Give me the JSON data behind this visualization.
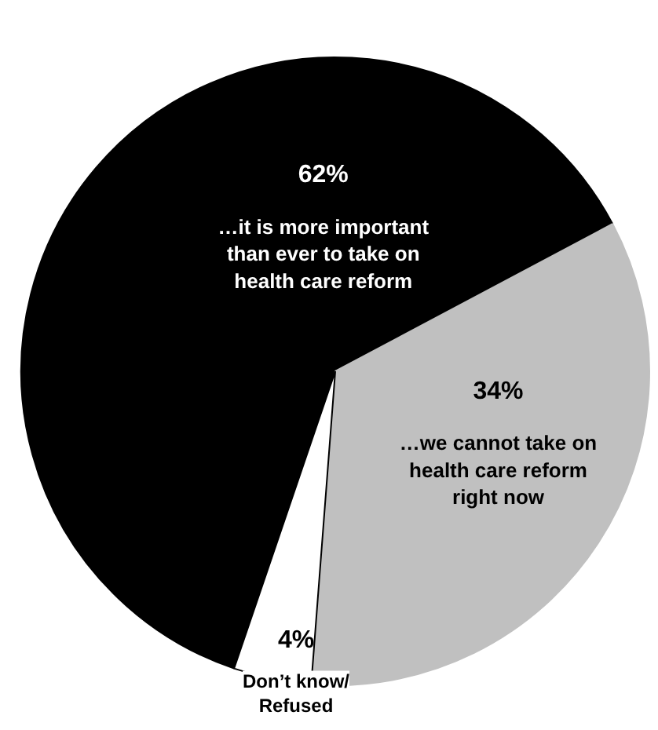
{
  "chart_data": {
    "type": "pie",
    "categories": [
      "…it is more important\nthan ever to take on\nhealth care reform",
      "…we cannot take on\nhealth care reform\nright now",
      "Don’t know/\nRefused"
    ],
    "values": [
      62,
      34,
      4
    ],
    "colors": [
      "#000000",
      "#c0c0c0",
      "#ffffff"
    ],
    "value_labels": [
      "62%",
      "34%",
      "4%"
    ]
  }
}
